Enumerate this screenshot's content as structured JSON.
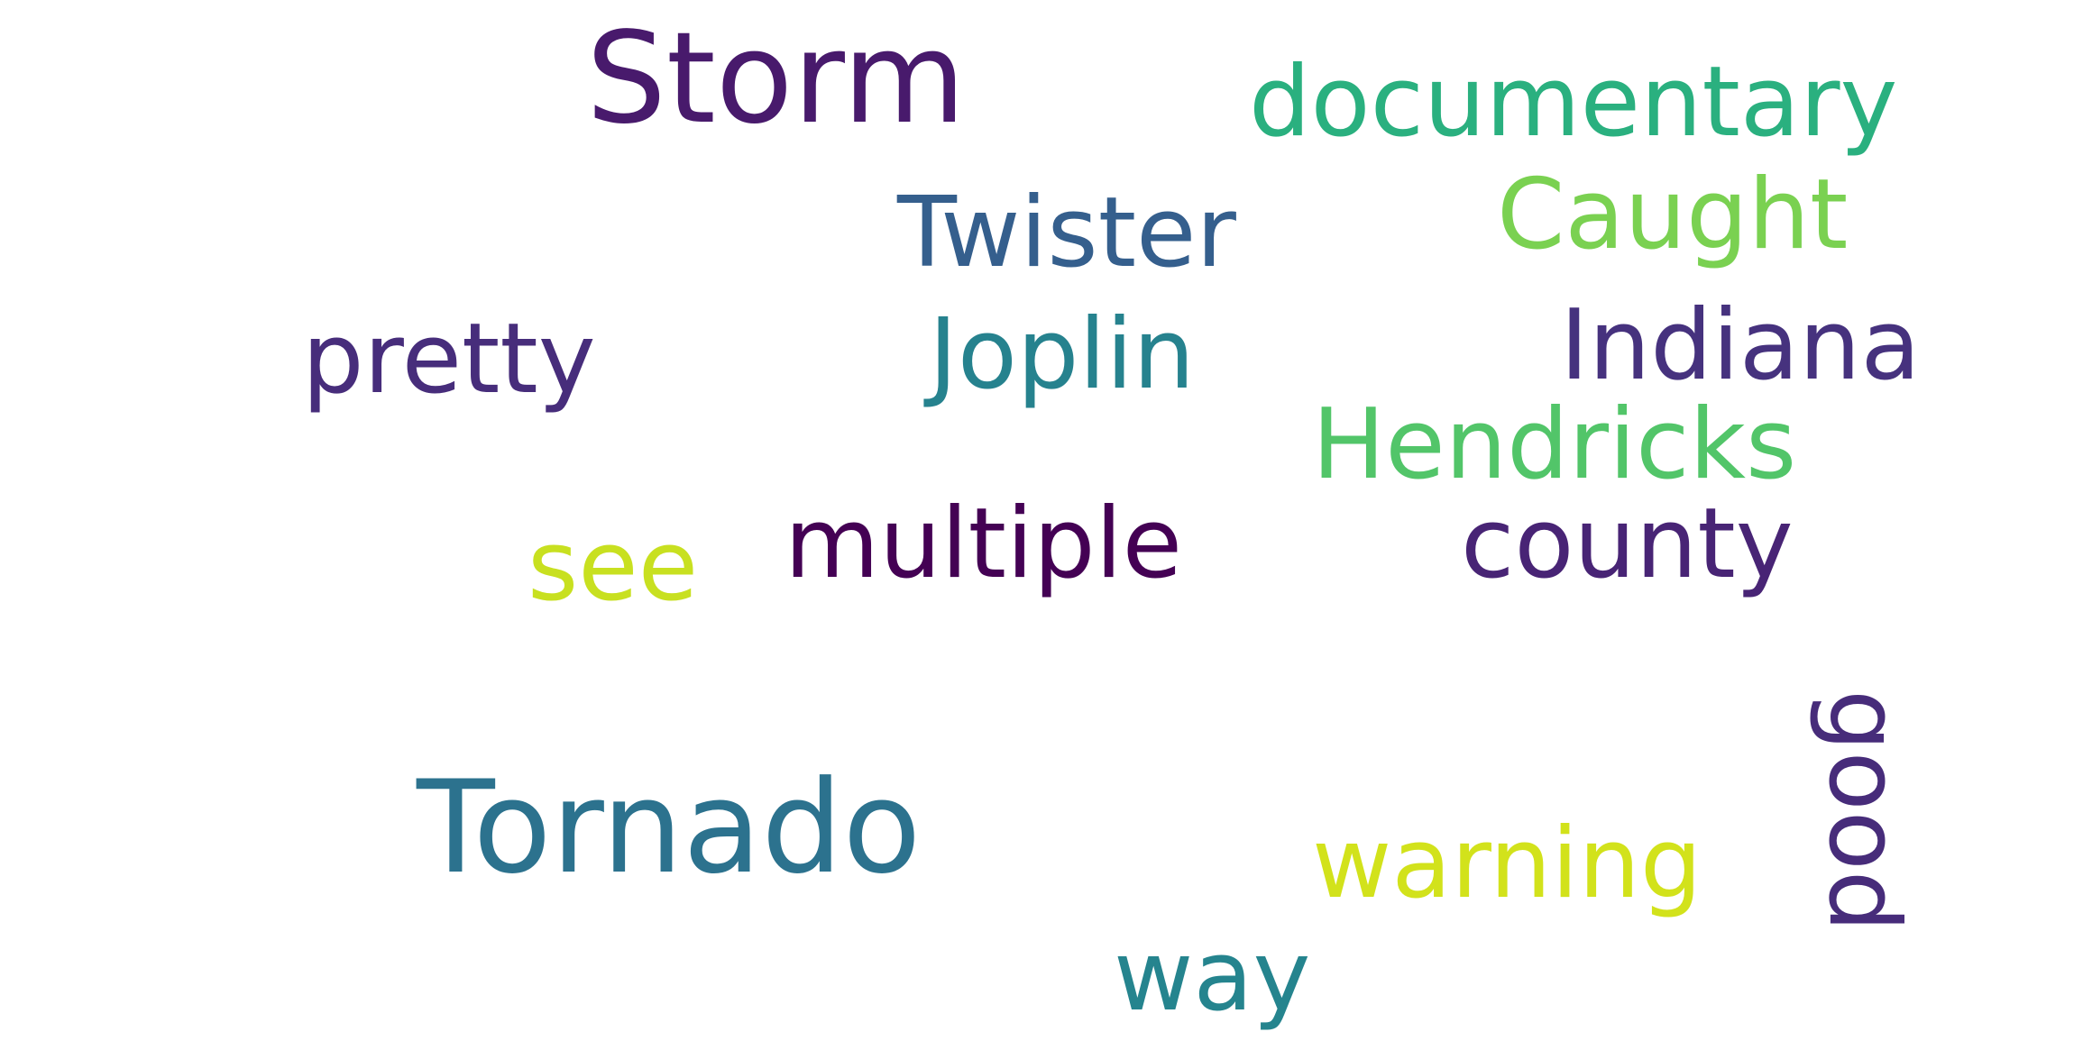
{
  "word_cloud": {
    "words": [
      {
        "text": "Storm",
        "color": "#481a6c"
      },
      {
        "text": "documentary",
        "color": "#2ab07f"
      },
      {
        "text": "Twister",
        "color": "#355f8d"
      },
      {
        "text": "Caught",
        "color": "#7ad151"
      },
      {
        "text": "pretty",
        "color": "#472d7b"
      },
      {
        "text": "Joplin",
        "color": "#26828e"
      },
      {
        "text": "Indiana",
        "color": "#46327e"
      },
      {
        "text": "Hendricks",
        "color": "#52c569"
      },
      {
        "text": "see",
        "color": "#c8e020"
      },
      {
        "text": "multiple",
        "color": "#440154"
      },
      {
        "text": "county",
        "color": "#482475"
      },
      {
        "text": "Tornado",
        "color": "#2c728e"
      },
      {
        "text": "warning",
        "color": "#d2e21b"
      },
      {
        "text": "good",
        "color": "#472c7a"
      },
      {
        "text": "way",
        "color": "#25848e"
      }
    ]
  }
}
